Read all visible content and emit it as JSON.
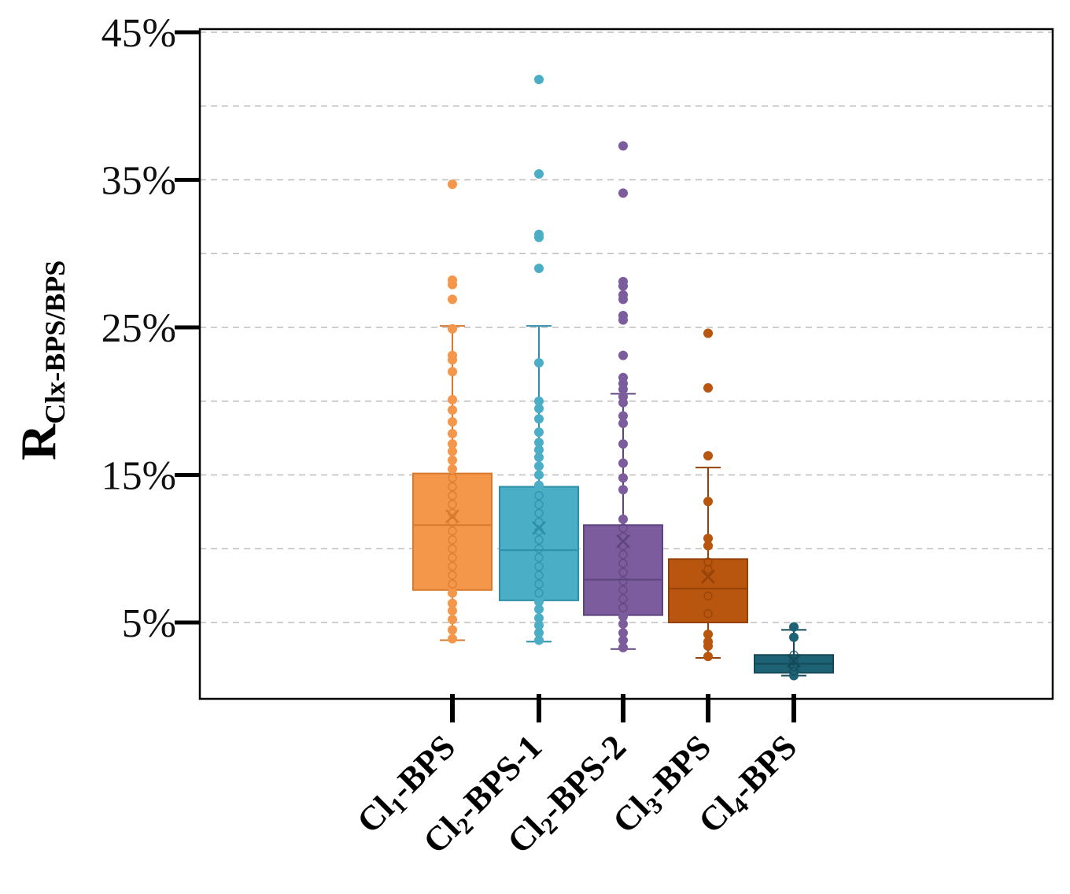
{
  "chart_data": {
    "type": "box",
    "title": "",
    "xlabel": "",
    "ylabel": {
      "main": "R",
      "sub": "Clx-BPS/BPS"
    },
    "ylim": [
      0,
      45
    ],
    "ytick_values": [
      5,
      15,
      25,
      35,
      45
    ],
    "ytick_labels": [
      "5%",
      "15%",
      "25%",
      "35%",
      "45%"
    ],
    "grid": true,
    "series": [
      {
        "name": "Cl1-BPS",
        "label_main": "Cl",
        "label_sub": "1",
        "label_rest": "-BPS",
        "color": "#F4974A",
        "stroke": "#D77A2E",
        "min": 3.8,
        "q1": 7.2,
        "median": 11.6,
        "q3": 15.1,
        "max": 25.1,
        "mean": 12.2,
        "points": [
          3.9,
          4.5,
          5.2,
          5.8,
          6.3,
          7.0,
          7.6,
          8.2,
          8.8,
          9.4,
          10.0,
          10.6,
          11.2,
          11.8,
          12.4,
          13.0,
          13.6,
          14.2,
          14.8,
          15.4,
          16.0,
          16.6,
          17.1,
          17.8,
          18.6,
          19.4,
          20.1,
          22.0,
          22.8,
          23.1,
          24.9,
          26.9,
          27.9,
          28.2,
          34.7
        ]
      },
      {
        "name": "Cl2-BPS-1",
        "label_main": "Cl",
        "label_sub": "2",
        "label_rest": "-BPS-1",
        "color": "#4AAEC6",
        "stroke": "#2F8FA8",
        "min": 3.7,
        "q1": 6.5,
        "median": 9.9,
        "q3": 14.2,
        "max": 25.1,
        "mean": 11.4,
        "points": [
          3.8,
          4.3,
          4.8,
          5.3,
          5.9,
          6.4,
          7.0,
          7.6,
          8.2,
          8.8,
          9.4,
          10.0,
          10.6,
          11.2,
          11.8,
          12.4,
          13.0,
          13.6,
          14.3,
          15.0,
          15.6,
          16.2,
          16.7,
          17.2,
          17.9,
          18.8,
          19.5,
          20.0,
          22.6,
          29.0,
          31.1,
          31.3,
          35.4,
          41.8
        ]
      },
      {
        "name": "Cl2-BPS-2",
        "label_main": "Cl",
        "label_sub": "2",
        "label_rest": "-BPS-2",
        "color": "#7C5C9D",
        "stroke": "#5F4580",
        "min": 3.2,
        "q1": 5.5,
        "median": 7.9,
        "q3": 11.6,
        "max": 20.5,
        "mean": 10.5,
        "points": [
          3.3,
          3.8,
          4.3,
          4.9,
          5.4,
          6.0,
          6.6,
          7.2,
          7.8,
          8.4,
          9.0,
          9.6,
          10.2,
          10.8,
          11.4,
          12.0,
          14.0,
          14.8,
          15.8,
          17.1,
          18.5,
          19.0,
          19.9,
          20.3,
          20.8,
          21.2,
          21.6,
          23.1,
          25.5,
          25.8,
          26.9,
          27.2,
          27.8,
          28.1,
          34.1,
          37.3
        ]
      },
      {
        "name": "Cl3-BPS",
        "label_main": "Cl",
        "label_sub": "3",
        "label_rest": "-BPS",
        "color": "#B8560F",
        "stroke": "#944208",
        "min": 2.6,
        "q1": 5.0,
        "median": 7.3,
        "q3": 9.3,
        "max": 15.5,
        "mean": 8.1,
        "points": [
          2.7,
          3.4,
          3.7,
          4.2,
          5.6,
          6.8,
          8.6,
          9.1,
          10.2,
          10.7,
          13.2,
          16.3,
          20.9,
          24.6
        ]
      },
      {
        "name": "Cl4-BPS",
        "label_main": "Cl",
        "label_sub": "4",
        "label_rest": "-BPS",
        "color": "#1E6275",
        "stroke": "#134A5A",
        "min": 1.4,
        "q1": 1.6,
        "median": 2.2,
        "q3": 2.8,
        "max": 4.5,
        "mean": 2.4,
        "points": [
          1.4,
          1.7,
          2.0,
          2.4,
          2.8,
          4.0,
          4.7
        ]
      }
    ]
  }
}
